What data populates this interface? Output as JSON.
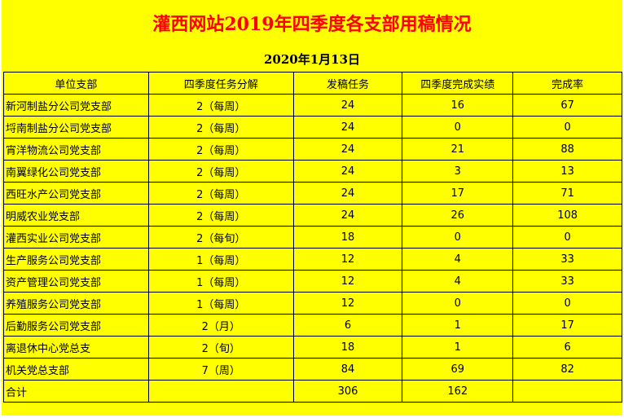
{
  "title": "灌西网站2019年四季度各支部用稿情况",
  "date": "2020年1月13日",
  "colors": {
    "background": "#ffff00",
    "title": "#ff0000"
  },
  "columns": [
    "单位支部",
    "四季度任务分解",
    "发稿任务",
    "四季度完成实绩",
    "完成率"
  ],
  "rows": [
    [
      "新河制盐分公司党支部",
      "2（每周）",
      "24",
      "16",
      "67"
    ],
    [
      "埒南制盐分公司党支部",
      "2（每周）",
      "24",
      "0",
      "0"
    ],
    [
      "宵洋物流公司党支部",
      "2（每周）",
      "24",
      "21",
      "88"
    ],
    [
      "南翼绿化公司党支部",
      "2（每周）",
      "24",
      "3",
      "13"
    ],
    [
      "西旺水产公司党支部",
      "2（每周）",
      "24",
      "17",
      "71"
    ],
    [
      "明威农业党支部",
      "2（每周）",
      "24",
      "26",
      "108"
    ],
    [
      "灌西实业公司党支部",
      "2（每旬）",
      "18",
      "0",
      "0"
    ],
    [
      "生产服务公司党支部",
      "1（每周）",
      "12",
      "4",
      "33"
    ],
    [
      "资产管理公司党支部",
      "1（每周）",
      "12",
      "4",
      "33"
    ],
    [
      "养殖服务公司党支部",
      "1（每周）",
      "12",
      "0",
      "0"
    ],
    [
      "后勤服务公司党支部",
      "2（月）",
      "6",
      "1",
      "17"
    ],
    [
      "离退休中心党总支",
      "2（旬）",
      "18",
      "1",
      "6"
    ],
    [
      "机关党总支部",
      "7（周）",
      "84",
      "69",
      "82"
    ]
  ],
  "total": [
    "合计",
    "",
    "306",
    "162",
    ""
  ]
}
